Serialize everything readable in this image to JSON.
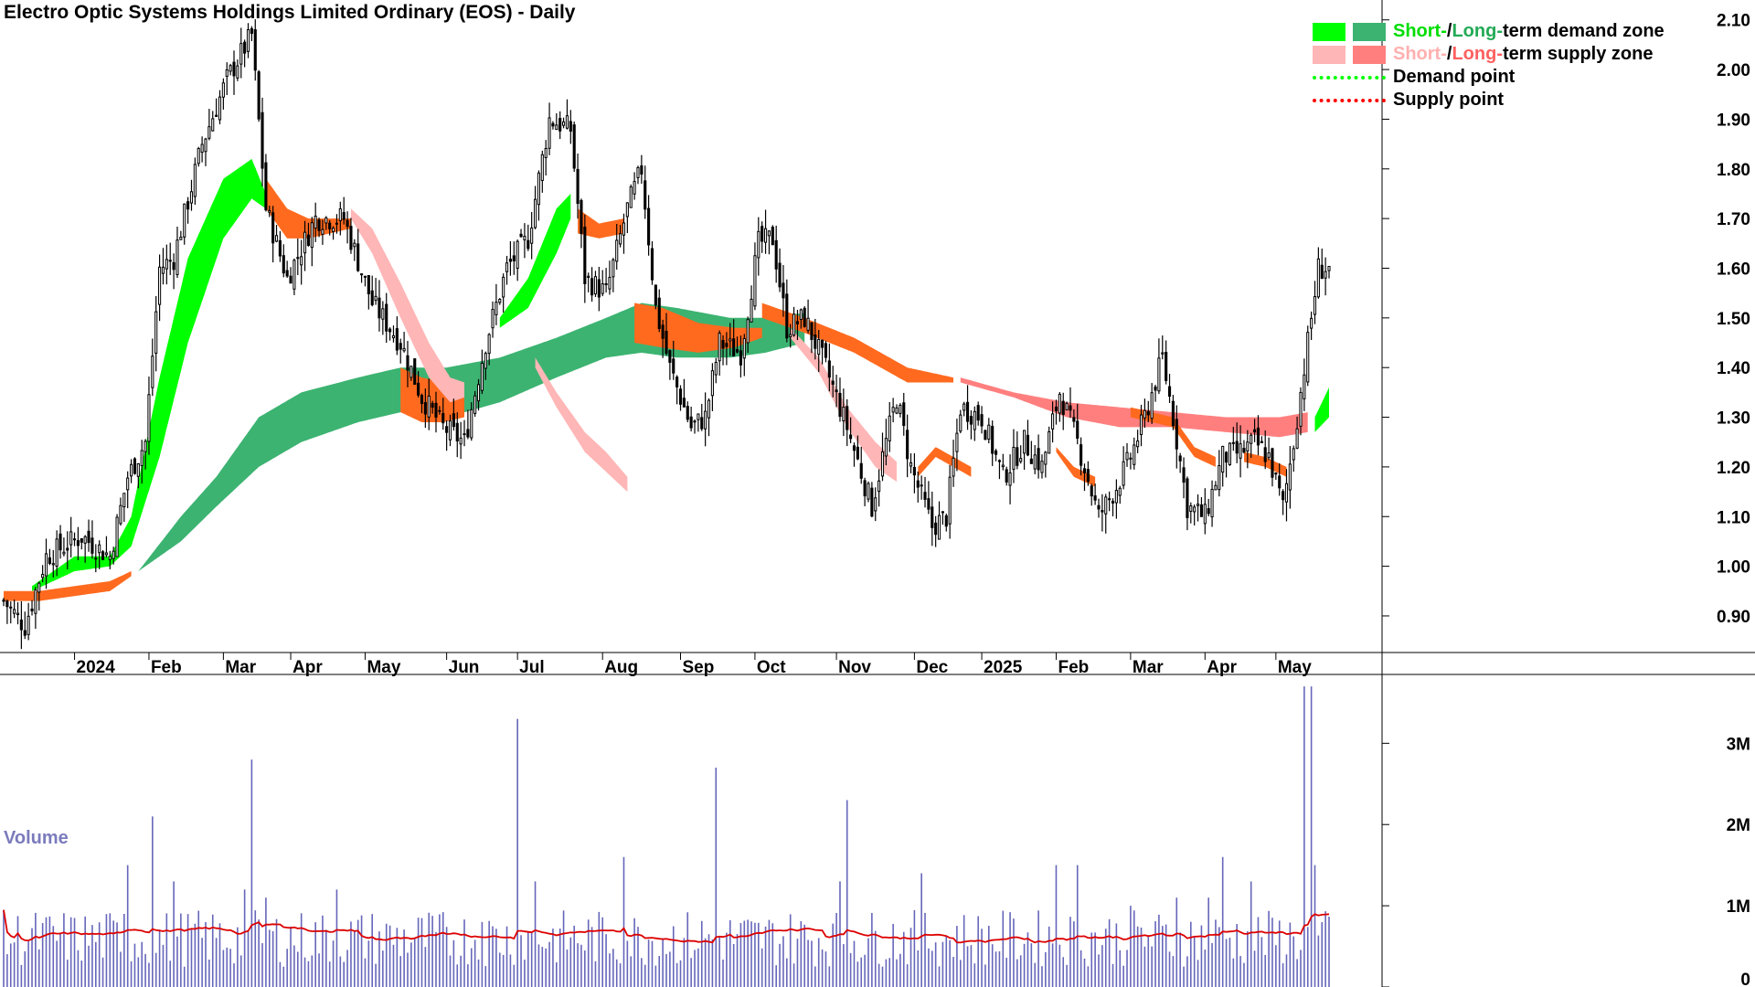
{
  "chart_data": {
    "type": "candlestick",
    "title": "Electro Optic Systems Holdings Limited Ordinary (EOS) - Daily",
    "price_axis": {
      "ticks": [
        "2.10",
        "2.00",
        "1.90",
        "1.80",
        "1.70",
        "1.60",
        "1.50",
        "1.40",
        "1.30",
        "1.20",
        "1.10",
        "1.00",
        "0.90"
      ],
      "range": [
        0.83,
        2.14
      ]
    },
    "x_labels": [
      "2024",
      "Feb",
      "Mar",
      "Apr",
      "May",
      "Jun",
      "Jul",
      "Aug",
      "Sep",
      "Oct",
      "Nov",
      "Dec",
      "2025",
      "Feb",
      "Mar",
      "Apr",
      "May"
    ],
    "x_label_index": [
      20,
      41,
      62,
      81,
      102,
      125,
      145,
      169,
      191,
      212,
      235,
      257,
      276,
      297,
      318,
      339,
      359
    ],
    "total_bars": 375,
    "legend": {
      "short_long_prefix_1": "Short-",
      "separator": " / ",
      "long_prefix": "Long-",
      "demand_zone_suffix": "term demand zone",
      "supply_zone_suffix": "term supply zone",
      "demand_point": "Demand point",
      "supply_point": "Supply point"
    },
    "colors": {
      "short_demand": "#00ff00",
      "long_demand": "#3cb371",
      "short_supply": "#ffb6b6",
      "long_supply": "#ff7f7f",
      "orange_zone": "#ff6a1f",
      "demand_point": "#00ff00",
      "supply_point": "#ff0000",
      "volume_bar": "#6666bb",
      "volume_ma": "#dd0000"
    },
    "close_anchors": [
      [
        0,
        0.93
      ],
      [
        6,
        0.88
      ],
      [
        12,
        1.02
      ],
      [
        22,
        1.06
      ],
      [
        30,
        1.02
      ],
      [
        35,
        1.18
      ],
      [
        40,
        1.25
      ],
      [
        44,
        1.6
      ],
      [
        48,
        1.62
      ],
      [
        56,
        1.85
      ],
      [
        63,
        1.98
      ],
      [
        70,
        2.07
      ],
      [
        74,
        1.72
      ],
      [
        80,
        1.58
      ],
      [
        88,
        1.7
      ],
      [
        96,
        1.7
      ],
      [
        104,
        1.53
      ],
      [
        112,
        1.45
      ],
      [
        118,
        1.34
      ],
      [
        124,
        1.28
      ],
      [
        130,
        1.25
      ],
      [
        136,
        1.45
      ],
      [
        142,
        1.6
      ],
      [
        148,
        1.66
      ],
      [
        154,
        1.9
      ],
      [
        160,
        1.88
      ],
      [
        164,
        1.58
      ],
      [
        170,
        1.55
      ],
      [
        176,
        1.72
      ],
      [
        180,
        1.8
      ],
      [
        184,
        1.52
      ],
      [
        188,
        1.4
      ],
      [
        194,
        1.28
      ],
      [
        198,
        1.3
      ],
      [
        202,
        1.45
      ],
      [
        208,
        1.43
      ],
      [
        213,
        1.65
      ],
      [
        217,
        1.66
      ],
      [
        221,
        1.48
      ],
      [
        226,
        1.5
      ],
      [
        232,
        1.4
      ],
      [
        238,
        1.28
      ],
      [
        245,
        1.12
      ],
      [
        248,
        1.22
      ],
      [
        252,
        1.34
      ],
      [
        256,
        1.2
      ],
      [
        262,
        1.08
      ],
      [
        266,
        1.1
      ],
      [
        270,
        1.32
      ],
      [
        276,
        1.3
      ],
      [
        282,
        1.18
      ],
      [
        288,
        1.25
      ],
      [
        293,
        1.2
      ],
      [
        298,
        1.35
      ],
      [
        303,
        1.25
      ],
      [
        309,
        1.1
      ],
      [
        314,
        1.16
      ],
      [
        318,
        1.22
      ],
      [
        322,
        1.3
      ],
      [
        327,
        1.42
      ],
      [
        330,
        1.3
      ],
      [
        334,
        1.12
      ],
      [
        339,
        1.1
      ],
      [
        344,
        1.22
      ],
      [
        349,
        1.23
      ],
      [
        353,
        1.25
      ],
      [
        357,
        1.22
      ],
      [
        361,
        1.12
      ],
      [
        364,
        1.25
      ],
      [
        368,
        1.45
      ],
      [
        371,
        1.6
      ],
      [
        374,
        1.6
      ]
    ],
    "short_demand_upper": [
      [
        8,
        0.96
      ],
      [
        20,
        1.02
      ],
      [
        30,
        1.02
      ],
      [
        36,
        1.1
      ],
      [
        44,
        1.38
      ],
      [
        52,
        1.62
      ],
      [
        62,
        1.78
      ],
      [
        70,
        1.82
      ],
      [
        74,
        1.75
      ]
    ],
    "short_demand_lower": [
      [
        8,
        0.95
      ],
      [
        20,
        0.99
      ],
      [
        30,
        1.0
      ],
      [
        36,
        1.04
      ],
      [
        44,
        1.22
      ],
      [
        52,
        1.45
      ],
      [
        62,
        1.66
      ],
      [
        70,
        1.74
      ],
      [
        74,
        1.72
      ]
    ],
    "long_demand_upper": [
      [
        38,
        0.99
      ],
      [
        50,
        1.1
      ],
      [
        60,
        1.18
      ],
      [
        72,
        1.3
      ],
      [
        84,
        1.35
      ],
      [
        100,
        1.38
      ],
      [
        112,
        1.4
      ],
      [
        125,
        1.4
      ],
      [
        140,
        1.42
      ],
      [
        156,
        1.46
      ],
      [
        170,
        1.5
      ],
      [
        180,
        1.53
      ],
      [
        190,
        1.52
      ],
      [
        205,
        1.5
      ],
      [
        215,
        1.5
      ],
      [
        226,
        1.51
      ]
    ],
    "long_demand_lower": [
      [
        38,
        0.99
      ],
      [
        50,
        1.05
      ],
      [
        60,
        1.12
      ],
      [
        72,
        1.2
      ],
      [
        84,
        1.25
      ],
      [
        100,
        1.29
      ],
      [
        112,
        1.31
      ],
      [
        125,
        1.3
      ],
      [
        140,
        1.33
      ],
      [
        156,
        1.38
      ],
      [
        170,
        1.42
      ],
      [
        180,
        1.43
      ],
      [
        190,
        1.42
      ],
      [
        205,
        1.42
      ],
      [
        215,
        1.43
      ],
      [
        226,
        1.45
      ]
    ],
    "short_supply_upper": [
      [
        98,
        1.72
      ],
      [
        104,
        1.68
      ],
      [
        112,
        1.57
      ],
      [
        120,
        1.45
      ],
      [
        126,
        1.38
      ],
      [
        130,
        1.37
      ]
    ],
    "short_supply_lower": [
      [
        98,
        1.7
      ],
      [
        104,
        1.63
      ],
      [
        112,
        1.5
      ],
      [
        120,
        1.38
      ],
      [
        126,
        1.33
      ],
      [
        130,
        1.34
      ]
    ],
    "long_supply_upper": [
      [
        270,
        1.38
      ],
      [
        285,
        1.35
      ],
      [
        300,
        1.33
      ],
      [
        315,
        1.32
      ],
      [
        330,
        1.31
      ],
      [
        345,
        1.3
      ],
      [
        360,
        1.3
      ],
      [
        368,
        1.31
      ]
    ],
    "long_supply_lower": [
      [
        270,
        1.37
      ],
      [
        285,
        1.34
      ],
      [
        300,
        1.3
      ],
      [
        315,
        1.28
      ],
      [
        330,
        1.28
      ],
      [
        345,
        1.27
      ],
      [
        360,
        1.26
      ],
      [
        368,
        1.27
      ]
    ],
    "orange_zones": [
      {
        "upper": [
          [
            0,
            0.95
          ],
          [
            10,
            0.95
          ],
          [
            20,
            0.96
          ],
          [
            30,
            0.97
          ],
          [
            36,
            0.99
          ]
        ],
        "lower": [
          [
            0,
            0.93
          ],
          [
            10,
            0.93
          ],
          [
            20,
            0.94
          ],
          [
            30,
            0.95
          ],
          [
            36,
            0.98
          ]
        ]
      },
      {
        "upper": [
          [
            74,
            1.78
          ],
          [
            80,
            1.72
          ],
          [
            86,
            1.7
          ],
          [
            92,
            1.7
          ],
          [
            98,
            1.7
          ]
        ],
        "lower": [
          [
            74,
            1.72
          ],
          [
            80,
            1.66
          ],
          [
            86,
            1.66
          ],
          [
            92,
            1.67
          ],
          [
            98,
            1.68
          ]
        ]
      },
      {
        "upper": [
          [
            112,
            1.4
          ],
          [
            118,
            1.38
          ],
          [
            124,
            1.37
          ],
          [
            130,
            1.35
          ]
        ],
        "lower": [
          [
            112,
            1.31
          ],
          [
            118,
            1.29
          ],
          [
            124,
            1.29
          ],
          [
            130,
            1.3
          ]
        ]
      },
      {
        "upper": [
          [
            162,
            1.72
          ],
          [
            168,
            1.69
          ],
          [
            175,
            1.7
          ]
        ],
        "lower": [
          [
            162,
            1.67
          ],
          [
            168,
            1.66
          ],
          [
            175,
            1.67
          ]
        ]
      },
      {
        "upper": [
          [
            178,
            1.53
          ],
          [
            186,
            1.52
          ],
          [
            196,
            1.49
          ],
          [
            206,
            1.48
          ],
          [
            214,
            1.48
          ]
        ],
        "lower": [
          [
            178,
            1.45
          ],
          [
            186,
            1.44
          ],
          [
            196,
            1.43
          ],
          [
            206,
            1.44
          ],
          [
            214,
            1.46
          ]
        ]
      },
      {
        "upper": [
          [
            214,
            1.53
          ],
          [
            226,
            1.5
          ],
          [
            240,
            1.46
          ],
          [
            255,
            1.4
          ],
          [
            268,
            1.38
          ]
        ],
        "lower": [
          [
            214,
            1.5
          ],
          [
            226,
            1.47
          ],
          [
            240,
            1.43
          ],
          [
            255,
            1.37
          ],
          [
            268,
            1.37
          ]
        ]
      },
      {
        "upper": [
          [
            258,
            1.2
          ],
          [
            263,
            1.24
          ],
          [
            268,
            1.22
          ],
          [
            273,
            1.2
          ]
        ],
        "lower": [
          [
            258,
            1.18
          ],
          [
            263,
            1.22
          ],
          [
            268,
            1.2
          ],
          [
            273,
            1.18
          ]
        ]
      },
      {
        "upper": [
          [
            297,
            1.24
          ],
          [
            302,
            1.2
          ],
          [
            308,
            1.18
          ]
        ],
        "lower": [
          [
            297,
            1.23
          ],
          [
            302,
            1.18
          ],
          [
            308,
            1.16
          ]
        ]
      },
      {
        "upper": [
          [
            318,
            1.32
          ],
          [
            324,
            1.31
          ],
          [
            330,
            1.3
          ],
          [
            336,
            1.24
          ],
          [
            342,
            1.22
          ]
        ],
        "lower": [
          [
            318,
            1.3
          ],
          [
            324,
            1.29
          ],
          [
            330,
            1.28
          ],
          [
            336,
            1.22
          ],
          [
            342,
            1.2
          ]
        ]
      },
      {
        "upper": [
          [
            350,
            1.23
          ],
          [
            356,
            1.22
          ],
          [
            362,
            1.2
          ]
        ],
        "lower": [
          [
            350,
            1.21
          ],
          [
            356,
            1.2
          ],
          [
            362,
            1.18
          ]
        ]
      }
    ],
    "short_supply_extra": [
      {
        "upper": [
          [
            222,
            1.48
          ],
          [
            230,
            1.42
          ],
          [
            238,
            1.32
          ],
          [
            246,
            1.25
          ],
          [
            252,
            1.21
          ]
        ],
        "lower": [
          [
            222,
            1.46
          ],
          [
            230,
            1.39
          ],
          [
            238,
            1.28
          ],
          [
            246,
            1.2
          ],
          [
            252,
            1.17
          ]
        ]
      },
      {
        "upper": [
          [
            150,
            1.42
          ],
          [
            156,
            1.35
          ],
          [
            164,
            1.27
          ],
          [
            170,
            1.23
          ],
          [
            176,
            1.18
          ]
        ],
        "lower": [
          [
            150,
            1.4
          ],
          [
            156,
            1.32
          ],
          [
            164,
            1.23
          ],
          [
            170,
            1.19
          ],
          [
            176,
            1.15
          ]
        ]
      }
    ],
    "short_demand_extra": [
      {
        "upper": [
          [
            140,
            1.5
          ],
          [
            148,
            1.58
          ],
          [
            156,
            1.72
          ],
          [
            160,
            1.75
          ]
        ],
        "lower": [
          [
            140,
            1.48
          ],
          [
            148,
            1.52
          ],
          [
            156,
            1.63
          ],
          [
            160,
            1.7
          ]
        ]
      },
      {
        "upper": [
          [
            370,
            1.3
          ],
          [
            374,
            1.36
          ]
        ],
        "lower": [
          [
            370,
            1.27
          ],
          [
            374,
            1.3
          ]
        ]
      }
    ],
    "volume_axis": {
      "ticks": [
        "3M",
        "2M",
        "1M",
        "0"
      ],
      "max": 3.6
    },
    "volume_label": "Volume",
    "volume_spikes": [
      [
        34,
        0.9
      ],
      [
        35,
        1.5
      ],
      [
        42,
        2.1
      ],
      [
        48,
        1.3
      ],
      [
        68,
        1.2
      ],
      [
        70,
        2.8
      ],
      [
        74,
        1.1
      ],
      [
        94,
        1.2
      ],
      [
        135,
        0.8
      ],
      [
        145,
        3.3
      ],
      [
        150,
        1.3
      ],
      [
        175,
        1.6
      ],
      [
        201,
        2.7
      ],
      [
        236,
        1.3
      ],
      [
        238,
        2.3
      ],
      [
        259,
        1.4
      ],
      [
        297,
        1.5
      ],
      [
        303,
        1.5
      ],
      [
        318,
        1.0
      ],
      [
        331,
        1.1
      ],
      [
        340,
        1.1
      ],
      [
        344,
        1.6
      ],
      [
        352,
        1.3
      ],
      [
        367,
        3.7
      ],
      [
        369,
        3.7
      ],
      [
        370,
        1.5
      ]
    ]
  }
}
